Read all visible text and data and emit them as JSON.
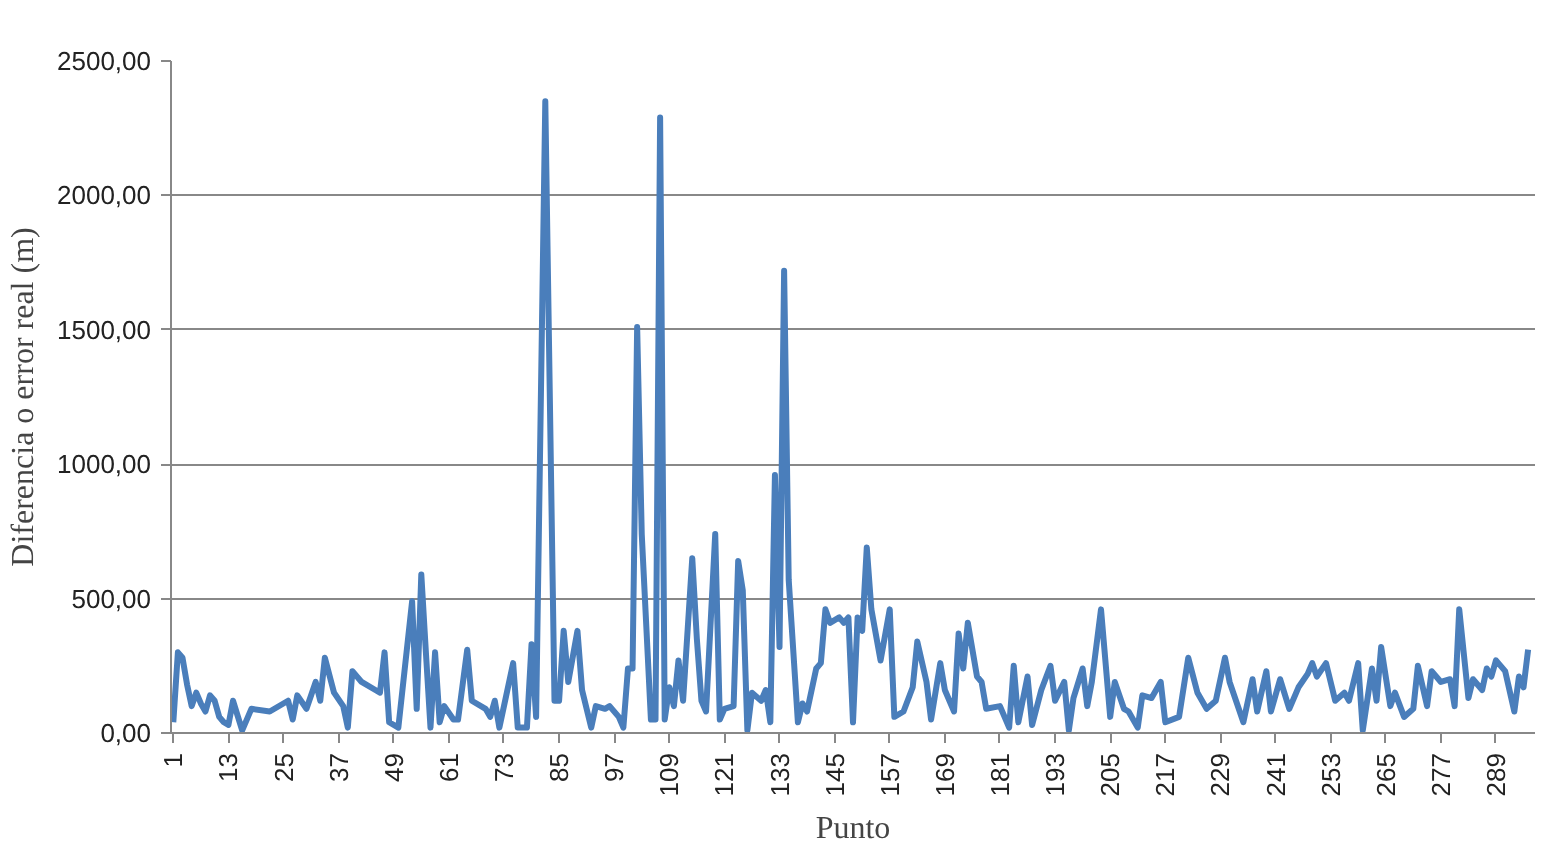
{
  "chart_data": {
    "type": "line",
    "xlabel": "Punto",
    "ylabel": "Diferencia o error real (m)",
    "x": [
      1,
      2,
      3,
      4,
      5,
      6,
      7,
      8,
      9,
      10,
      11,
      12,
      13,
      14,
      16,
      18,
      22,
      26,
      27,
      28,
      30,
      32,
      33,
      34,
      36,
      38,
      39,
      40,
      42,
      45,
      46,
      47,
      48,
      50,
      53,
      54,
      55,
      56,
      57,
      58,
      59,
      60,
      62,
      63,
      65,
      66,
      69,
      70,
      71,
      72,
      75,
      76,
      78,
      79,
      80,
      82,
      84,
      85,
      86,
      87,
      89,
      90,
      92,
      93,
      95,
      96,
      98,
      99,
      100,
      101,
      102,
      103,
      105,
      106,
      107,
      108,
      109,
      110,
      111,
      112,
      114,
      115,
      116,
      117,
      119,
      120,
      121,
      123,
      124,
      125,
      126,
      127,
      129,
      130,
      131,
      132,
      133,
      134,
      135,
      137,
      138,
      139,
      141,
      142,
      143,
      144,
      146,
      147,
      148,
      149,
      150,
      151,
      152,
      153,
      155,
      157,
      158,
      160,
      162,
      163,
      165,
      166,
      168,
      169,
      171,
      172,
      173,
      174,
      176,
      177,
      178,
      181,
      183,
      184,
      185,
      187,
      188,
      190,
      192,
      193,
      195,
      196,
      197,
      199,
      200,
      201,
      203,
      205,
      206,
      208,
      209,
      211,
      212,
      214,
      216,
      217,
      220,
      222,
      224,
      226,
      228,
      230,
      231,
      234,
      236,
      237,
      239,
      240,
      242,
      244,
      246,
      248,
      249,
      250,
      252,
      254,
      256,
      257,
      259,
      260,
      262,
      263,
      264,
      266,
      267,
      269,
      271,
      272,
      274,
      275,
      277,
      279,
      280,
      281,
      283,
      284,
      286,
      287,
      288,
      289,
      291,
      293,
      294,
      295,
      296
    ],
    "series": [
      {
        "color": "#4a7ebb",
        "values": [
          40,
          300,
          280,
          180,
          100,
          150,
          110,
          80,
          140,
          120,
          60,
          40,
          30,
          120,
          10,
          90,
          80,
          120,
          50,
          140,
          90,
          190,
          120,
          280,
          150,
          100,
          20,
          230,
          190,
          160,
          150,
          300,
          40,
          20,
          490,
          90,
          590,
          300,
          20,
          300,
          40,
          100,
          50,
          50,
          310,
          120,
          90,
          60,
          120,
          20,
          260,
          20,
          20,
          330,
          60,
          2350,
          120,
          120,
          380,
          190,
          380,
          160,
          20,
          100,
          90,
          100,
          60,
          20,
          240,
          240,
          1510,
          740,
          50,
          50,
          2290,
          50,
          170,
          100,
          270,
          120,
          650,
          350,
          120,
          80,
          740,
          50,
          90,
          100,
          640,
          530,
          10,
          150,
          120,
          160,
          40,
          960,
          320,
          1720,
          570,
          40,
          110,
          80,
          240,
          260,
          460,
          410,
          430,
          410,
          430,
          40,
          430,
          380,
          690,
          460,
          270,
          460,
          60,
          80,
          170,
          340,
          190,
          50,
          260,
          160,
          80,
          370,
          240,
          410,
          210,
          190,
          90,
          100,
          20,
          250,
          40,
          210,
          30,
          160,
          250,
          120,
          190,
          10,
          130,
          240,
          100,
          190,
          460,
          60,
          190,
          90,
          80,
          20,
          140,
          130,
          190,
          40,
          60,
          280,
          150,
          90,
          120,
          280,
          190,
          40,
          200,
          80,
          230,
          80,
          200,
          90,
          170,
          220,
          260,
          210,
          260,
          120,
          150,
          120,
          260,
          10,
          240,
          120,
          320,
          100,
          150,
          60,
          90,
          250,
          100,
          230,
          190,
          200,
          100,
          460,
          130,
          200,
          160,
          240,
          210,
          270,
          230,
          80,
          210,
          170,
          310
        ]
      }
    ],
    "xlim": [
      0.5,
      297.5
    ],
    "xticks": [
      1,
      13,
      25,
      37,
      49,
      61,
      73,
      85,
      97,
      109,
      121,
      133,
      145,
      157,
      169,
      181,
      193,
      205,
      217,
      229,
      241,
      253,
      265,
      277,
      289
    ],
    "ylim": [
      0,
      2500
    ],
    "yticks": [
      {
        "value": 0,
        "label": "0,00"
      },
      {
        "value": 500,
        "label": "500,00"
      },
      {
        "value": 1000,
        "label": "1000,00"
      },
      {
        "value": 1500,
        "label": "1500,00"
      },
      {
        "value": 2000,
        "label": "2000,00"
      },
      {
        "value": 2500,
        "label": "2500,00"
      }
    ],
    "grid": "y",
    "line_style": "solid"
  }
}
